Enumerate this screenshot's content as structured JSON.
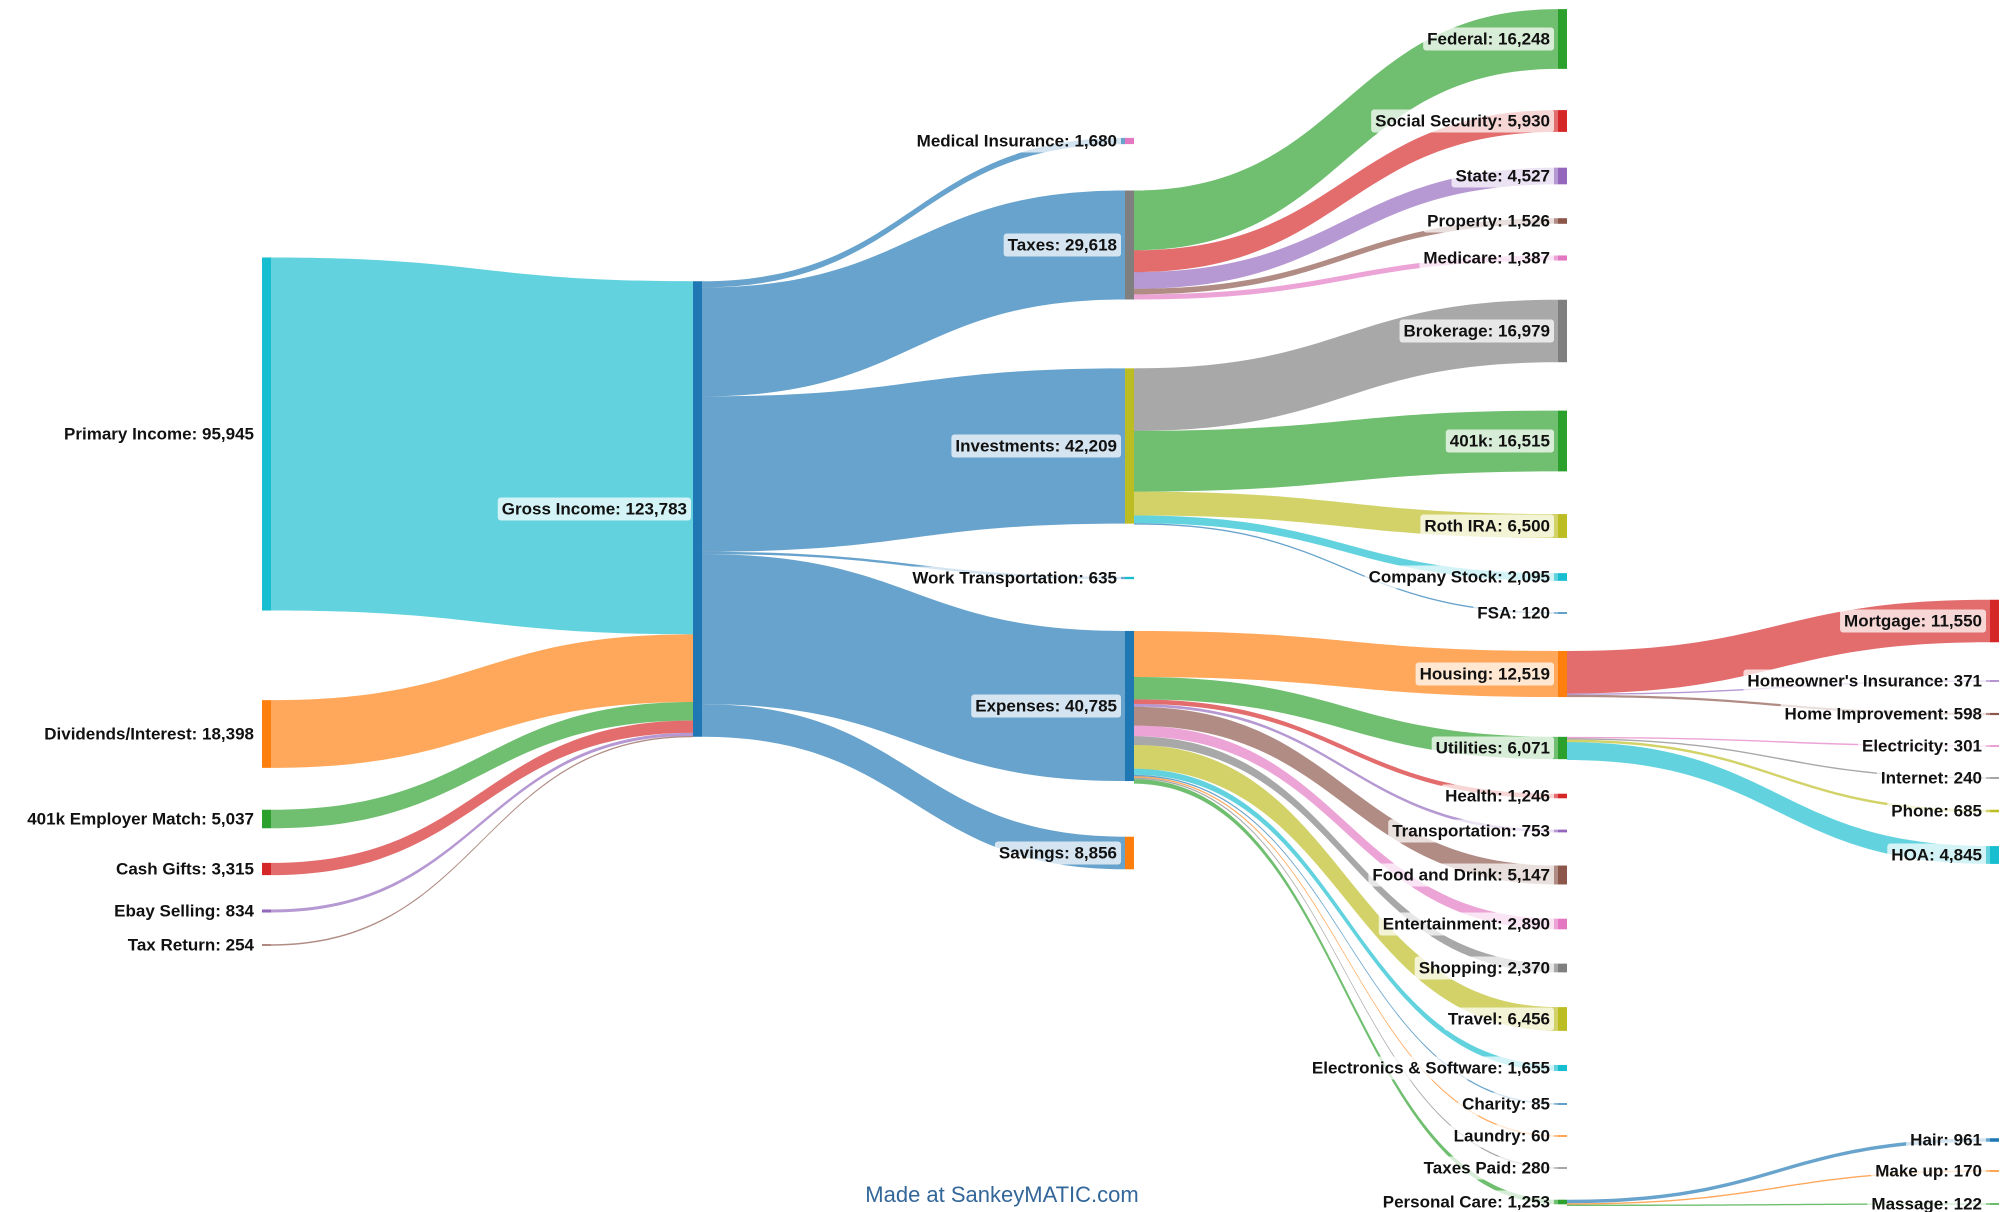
{
  "chart_data": {
    "type": "sankey",
    "title": "",
    "credit": "Made at SankeyMATIC.com",
    "nodes": [
      {
        "id": "primary",
        "label": "Primary Income",
        "value": "95,945",
        "color": "#17becf"
      },
      {
        "id": "dividends",
        "label": "Dividends/Interest",
        "value": "18,398",
        "color": "#ff7f0e"
      },
      {
        "id": "match401k",
        "label": "401k Employer Match",
        "value": "5,037",
        "color": "#2ca02c"
      },
      {
        "id": "gifts",
        "label": "Cash Gifts",
        "value": "3,315",
        "color": "#d62728"
      },
      {
        "id": "ebay",
        "label": "Ebay Selling",
        "value": "834",
        "color": "#9467bd"
      },
      {
        "id": "taxret",
        "label": "Tax Return",
        "value": "254",
        "color": "#8c564b"
      },
      {
        "id": "gross",
        "label": "Gross Income",
        "value": "123,783",
        "color": "#1f77b4"
      },
      {
        "id": "medins",
        "label": "Medical Insurance",
        "value": "1,680",
        "color": "#e377c2"
      },
      {
        "id": "taxes",
        "label": "Taxes",
        "value": "29,618",
        "color": "#7f7f7f"
      },
      {
        "id": "invest",
        "label": "Investments",
        "value": "42,209",
        "color": "#bcbd22"
      },
      {
        "id": "worktrans",
        "label": "Work Transportation",
        "value": "635",
        "color": "#17becf"
      },
      {
        "id": "expenses",
        "label": "Expenses",
        "value": "40,785",
        "color": "#1f77b4"
      },
      {
        "id": "savings",
        "label": "Savings",
        "value": "8,856",
        "color": "#ff7f0e"
      },
      {
        "id": "federal",
        "label": "Federal",
        "value": "16,248",
        "color": "#2ca02c"
      },
      {
        "id": "socsec",
        "label": "Social Security",
        "value": "5,930",
        "color": "#d62728"
      },
      {
        "id": "state",
        "label": "State",
        "value": "4,527",
        "color": "#9467bd"
      },
      {
        "id": "property",
        "label": "Property",
        "value": "1,526",
        "color": "#8c564b"
      },
      {
        "id": "medicare",
        "label": "Medicare",
        "value": "1,387",
        "color": "#e377c2"
      },
      {
        "id": "brokerage",
        "label": "Brokerage",
        "value": "16,979",
        "color": "#7f7f7f"
      },
      {
        "id": "k401",
        "label": "401k",
        "value": "16,515",
        "color": "#2ca02c"
      },
      {
        "id": "roth",
        "label": "Roth IRA",
        "value": "6,500",
        "color": "#bcbd22"
      },
      {
        "id": "cstock",
        "label": "Company Stock",
        "value": "2,095",
        "color": "#17becf"
      },
      {
        "id": "fsa",
        "label": "FSA",
        "value": "120",
        "color": "#1f77b4"
      },
      {
        "id": "housing",
        "label": "Housing",
        "value": "12,519",
        "color": "#ff7f0e"
      },
      {
        "id": "utilities",
        "label": "Utilities",
        "value": "6,071",
        "color": "#2ca02c"
      },
      {
        "id": "health",
        "label": "Health",
        "value": "1,246",
        "color": "#d62728"
      },
      {
        "id": "transport",
        "label": "Transportation",
        "value": "753",
        "color": "#9467bd"
      },
      {
        "id": "food",
        "label": "Food and Drink",
        "value": "5,147",
        "color": "#8c564b"
      },
      {
        "id": "entert",
        "label": "Entertainment",
        "value": "2,890",
        "color": "#e377c2"
      },
      {
        "id": "shopping",
        "label": "Shopping",
        "value": "2,370",
        "color": "#7f7f7f"
      },
      {
        "id": "travel",
        "label": "Travel",
        "value": "6,456",
        "color": "#bcbd22"
      },
      {
        "id": "electronics",
        "label": "Electronics & Software",
        "value": "1,655",
        "color": "#17becf"
      },
      {
        "id": "charity",
        "label": "Charity",
        "value": "85",
        "color": "#1f77b4"
      },
      {
        "id": "laundry",
        "label": "Laundry",
        "value": "60",
        "color": "#ff7f0e"
      },
      {
        "id": "taxespaid",
        "label": "Taxes Paid",
        "value": "280",
        "color": "#7f7f7f"
      },
      {
        "id": "personal",
        "label": "Personal Care",
        "value": "1,253",
        "color": "#2ca02c"
      },
      {
        "id": "mortgage",
        "label": "Mortgage",
        "value": "11,550",
        "color": "#d62728"
      },
      {
        "id": "homeins",
        "label": "Homeowner's Insurance",
        "value": "371",
        "color": "#9467bd"
      },
      {
        "id": "homeimp",
        "label": "Home Improvement",
        "value": "598",
        "color": "#8c564b"
      },
      {
        "id": "electricity",
        "label": "Electricity",
        "value": "301",
        "color": "#e377c2"
      },
      {
        "id": "internet",
        "label": "Internet",
        "value": "240",
        "color": "#7f7f7f"
      },
      {
        "id": "phone",
        "label": "Phone",
        "value": "685",
        "color": "#bcbd22"
      },
      {
        "id": "hoa",
        "label": "HOA",
        "value": "4,845",
        "color": "#17becf"
      },
      {
        "id": "hair",
        "label": "Hair",
        "value": "961",
        "color": "#1f77b4"
      },
      {
        "id": "makeup",
        "label": "Make up",
        "value": "170",
        "color": "#ff7f0e"
      },
      {
        "id": "massage",
        "label": "Massage",
        "value": "122",
        "color": "#2ca02c"
      }
    ],
    "links": [
      {
        "source": "primary",
        "target": "gross",
        "value": 95945
      },
      {
        "source": "dividends",
        "target": "gross",
        "value": 18398
      },
      {
        "source": "match401k",
        "target": "gross",
        "value": 5037
      },
      {
        "source": "gifts",
        "target": "gross",
        "value": 3315
      },
      {
        "source": "ebay",
        "target": "gross",
        "value": 834
      },
      {
        "source": "taxret",
        "target": "gross",
        "value": 254
      },
      {
        "source": "gross",
        "target": "medins",
        "value": 1680
      },
      {
        "source": "gross",
        "target": "taxes",
        "value": 29618
      },
      {
        "source": "gross",
        "target": "invest",
        "value": 42209
      },
      {
        "source": "gross",
        "target": "worktrans",
        "value": 635
      },
      {
        "source": "gross",
        "target": "expenses",
        "value": 40785
      },
      {
        "source": "gross",
        "target": "savings",
        "value": 8856
      },
      {
        "source": "taxes",
        "target": "federal",
        "value": 16248
      },
      {
        "source": "taxes",
        "target": "socsec",
        "value": 5930
      },
      {
        "source": "taxes",
        "target": "state",
        "value": 4527
      },
      {
        "source": "taxes",
        "target": "property",
        "value": 1526
      },
      {
        "source": "taxes",
        "target": "medicare",
        "value": 1387
      },
      {
        "source": "invest",
        "target": "brokerage",
        "value": 16979
      },
      {
        "source": "invest",
        "target": "k401",
        "value": 16515
      },
      {
        "source": "invest",
        "target": "roth",
        "value": 6500
      },
      {
        "source": "invest",
        "target": "cstock",
        "value": 2095
      },
      {
        "source": "invest",
        "target": "fsa",
        "value": 120
      },
      {
        "source": "expenses",
        "target": "housing",
        "value": 12519
      },
      {
        "source": "expenses",
        "target": "utilities",
        "value": 6071
      },
      {
        "source": "expenses",
        "target": "health",
        "value": 1246
      },
      {
        "source": "expenses",
        "target": "transport",
        "value": 753
      },
      {
        "source": "expenses",
        "target": "food",
        "value": 5147
      },
      {
        "source": "expenses",
        "target": "entert",
        "value": 2890
      },
      {
        "source": "expenses",
        "target": "shopping",
        "value": 2370
      },
      {
        "source": "expenses",
        "target": "travel",
        "value": 6456
      },
      {
        "source": "expenses",
        "target": "electronics",
        "value": 1655
      },
      {
        "source": "expenses",
        "target": "charity",
        "value": 85
      },
      {
        "source": "expenses",
        "target": "laundry",
        "value": 60
      },
      {
        "source": "expenses",
        "target": "taxespaid",
        "value": 280
      },
      {
        "source": "expenses",
        "target": "personal",
        "value": 1253
      },
      {
        "source": "housing",
        "target": "mortgage",
        "value": 11550
      },
      {
        "source": "housing",
        "target": "homeins",
        "value": 371
      },
      {
        "source": "housing",
        "target": "homeimp",
        "value": 598
      },
      {
        "source": "utilities",
        "target": "electricity",
        "value": 301
      },
      {
        "source": "utilities",
        "target": "internet",
        "value": 240
      },
      {
        "source": "utilities",
        "target": "phone",
        "value": 685
      },
      {
        "source": "utilities",
        "target": "hoa",
        "value": 4845
      },
      {
        "source": "personal",
        "target": "hair",
        "value": 961
      },
      {
        "source": "personal",
        "target": "makeup",
        "value": 170
      },
      {
        "source": "personal",
        "target": "massage",
        "value": 122
      }
    ]
  }
}
